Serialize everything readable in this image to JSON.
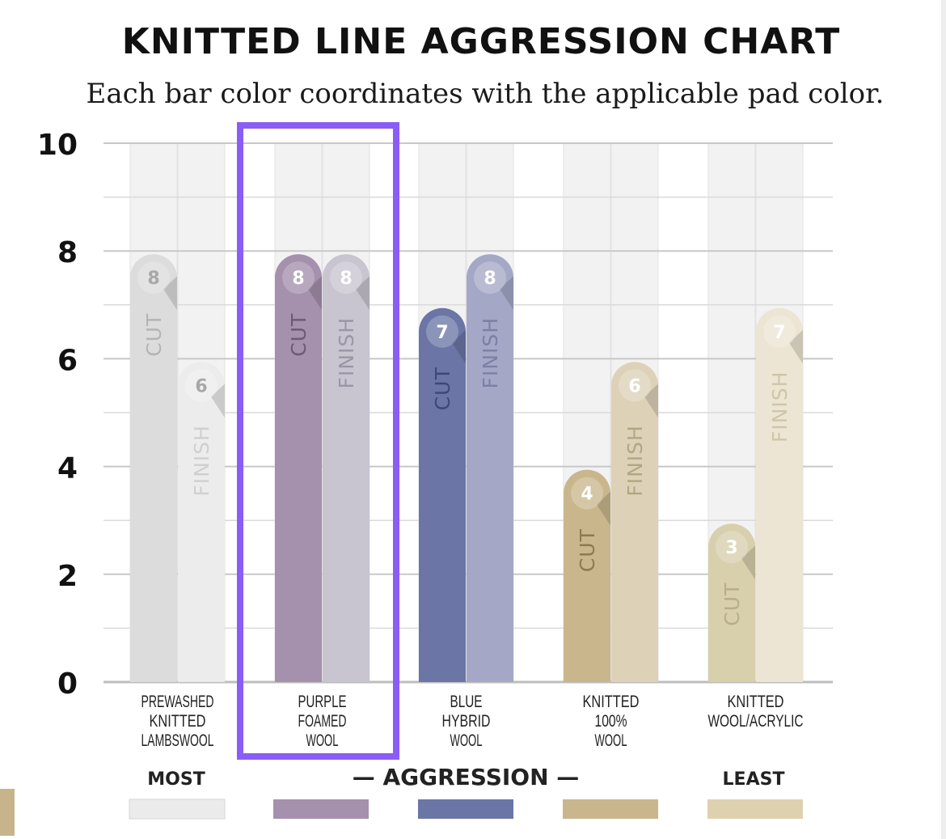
{
  "chart_data": {
    "type": "bar",
    "title": "KNITTED LINE AGGRESSION CHART",
    "subtitle": "Each bar color coordinates with the applicable pad color.",
    "ylim": [
      0,
      10
    ],
    "yticks": [
      "0",
      "2",
      "4",
      "6",
      "8",
      "10"
    ],
    "grid": true,
    "categories": [
      {
        "label_lines": [
          "PREWASHED",
          "KNITTED",
          "LAMBSWOOL"
        ],
        "cut": 8,
        "finish": 6,
        "cut_color": "#dcdcdc",
        "finish_color": "#ececec",
        "cut_label_color": "#b4b4b4",
        "finish_label_color": "#cfcfcf",
        "badge_text_color": "#a8a8a8"
      },
      {
        "label_lines": [
          "PURPLE",
          "FOAMED",
          "WOOL"
        ],
        "cut": 8,
        "finish": 8,
        "cut_color": "#a590ad",
        "finish_color": "#c8c4d0",
        "cut_label_color": "#6d5a78",
        "finish_label_color": "#9a96a6",
        "badge_text_color": "#ffffff"
      },
      {
        "label_lines": [
          "BLUE",
          "HYBRID",
          "WOOL"
        ],
        "cut": 7,
        "finish": 8,
        "cut_color": "#6b76a6",
        "finish_color": "#a4a8c6",
        "cut_label_color": "#3f4877",
        "finish_label_color": "#7b80a4",
        "badge_text_color": "#ffffff"
      },
      {
        "label_lines": [
          "KNITTED",
          "100%",
          "WOOL"
        ],
        "cut": 4,
        "finish": 6,
        "cut_color": "#c9b68c",
        "finish_color": "#ddd1b8",
        "cut_label_color": "#8e7a50",
        "finish_label_color": "#b3a684",
        "badge_text_color": "#ffffff"
      },
      {
        "label_lines": [
          "KNITTED",
          "WOOL/ACRYLIC"
        ],
        "cut": 3,
        "finish": 7,
        "cut_color": "#d8cfad",
        "finish_color": "#ece5d3",
        "cut_label_color": "#b9ad8a",
        "finish_label_color": "#cfc5a8",
        "badge_text_color": "#ffffff"
      }
    ],
    "bar_labels": {
      "cut": "CUT",
      "finish": "FINISH"
    },
    "highlight_category": 1,
    "highlight_color": "#8b5cf6",
    "legend": {
      "most": "MOST",
      "center": "— AGGRESSION —",
      "least": "LEAST",
      "swatches": [
        "#ebebeb",
        "#a590ad",
        "#6b76a6",
        "#c9b68c",
        "#ddd1b0"
      ]
    }
  }
}
